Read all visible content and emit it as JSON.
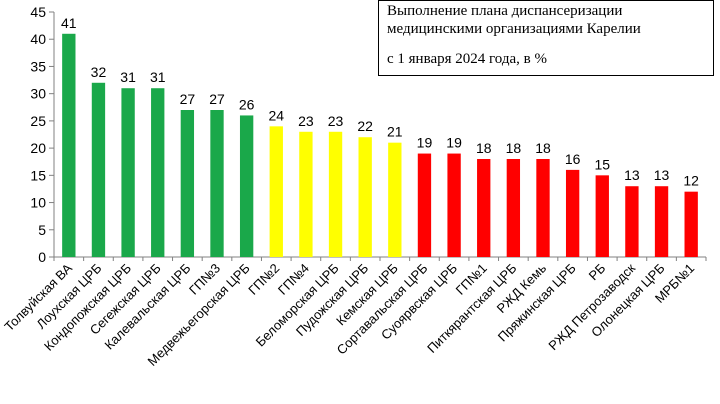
{
  "chart_data": {
    "type": "bar",
    "title_lines": [
      "Выполнение плана диспансеризации",
      "медицинскими организациями Карелии",
      "с 1 января 2024 года, в %"
    ],
    "categories": [
      "Толвуйская ВА",
      "Лоухская ЦРБ",
      "Кондопожская ЦРБ",
      "Сегежская ЦРБ",
      "Калевальская ЦРБ",
      "ГП№3",
      "Медвежьегорская ЦРБ",
      "ГП№2",
      "ГП№4",
      "Беломорская ЦРБ",
      "Пудожская ЦРБ",
      "Кемская ЦРБ",
      "Сортавальская ЦРБ",
      "Суоярвская ЦРБ",
      "ГП№1",
      "Питкярантская ЦРБ",
      "РЖД Кемь",
      "Пряжинская ЦРБ",
      "РБ",
      "РЖД Петрозаводск",
      "Олонецкая ЦРБ",
      "МРБ№1"
    ],
    "values": [
      41,
      32,
      31,
      31,
      27,
      27,
      26,
      24,
      23,
      23,
      22,
      21,
      19,
      19,
      18,
      18,
      18,
      16,
      15,
      13,
      13,
      12
    ],
    "bar_colors": [
      "#1aa84a",
      "#1aa84a",
      "#1aa84a",
      "#1aa84a",
      "#1aa84a",
      "#1aa84a",
      "#1aa84a",
      "#ffff00",
      "#ffff00",
      "#ffff00",
      "#ffff00",
      "#ffff00",
      "#ff0000",
      "#ff0000",
      "#ff0000",
      "#ff0000",
      "#ff0000",
      "#ff0000",
      "#ff0000",
      "#ff0000",
      "#ff0000",
      "#ff0000"
    ],
    "xlabel": "",
    "ylabel": "",
    "ylim": [
      0,
      45
    ],
    "yticks": [
      0,
      5,
      10,
      15,
      20,
      25,
      30,
      35,
      40,
      45
    ],
    "grid": false,
    "legend": "none"
  }
}
